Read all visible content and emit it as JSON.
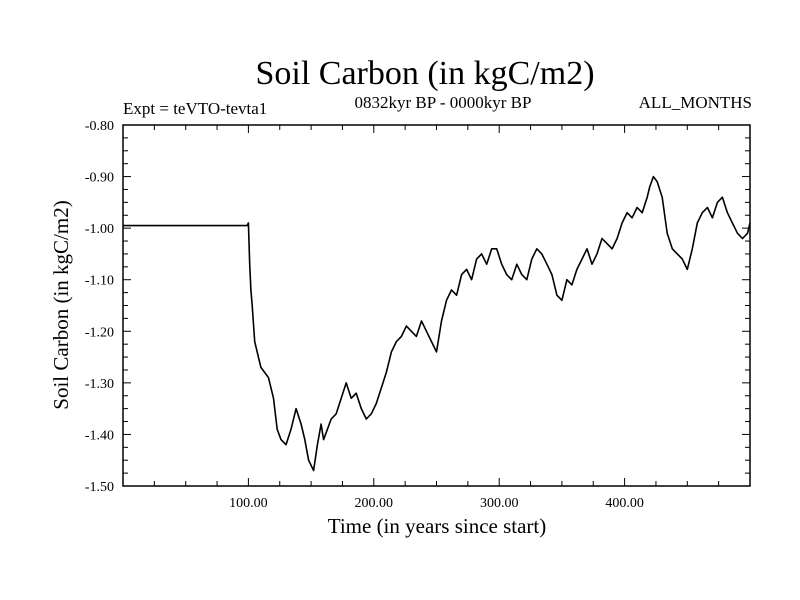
{
  "chart_data": {
    "type": "line",
    "title": "Soil Carbon (in kgC/m2)",
    "subtitle": "0832kyr BP - 0000kyr BP",
    "experiment": "Expt = teVTO-tevta1",
    "period": "ALL_MONTHS",
    "xlabel": "Time (in years since start)",
    "ylabel": "Soil Carbon (in kgC/m2)",
    "xlim": [
      0,
      500
    ],
    "ylim": [
      -1.5,
      -0.8
    ],
    "xticks": [
      100,
      200,
      300,
      400
    ],
    "xtick_labels": [
      "100.00",
      "200.00",
      "300.00",
      "400.00"
    ],
    "yticks": [
      -0.8,
      -0.9,
      -1.0,
      -1.1,
      -1.2,
      -1.3,
      -1.4,
      -1.5
    ],
    "ytick_labels": [
      "-0.80",
      "-0.90",
      "-1.00",
      "-1.10",
      "-1.20",
      "-1.30",
      "-1.40",
      "-1.50"
    ],
    "grid": false,
    "series": [
      {
        "name": "Soil Carbon",
        "color": "#000000",
        "x": [
          0,
          99,
          100,
          101,
          102,
          103,
          105,
          108,
          110,
          113,
          116,
          120,
          123,
          126,
          130,
          134,
          138,
          142,
          145,
          148,
          150,
          152,
          155,
          158,
          160,
          163,
          166,
          170,
          174,
          178,
          182,
          186,
          190,
          194,
          198,
          202,
          206,
          210,
          214,
          218,
          222,
          226,
          230,
          234,
          238,
          242,
          246,
          250,
          254,
          258,
          262,
          266,
          270,
          274,
          278,
          282,
          286,
          290,
          294,
          298,
          302,
          306,
          310,
          314,
          318,
          322,
          326,
          330,
          334,
          338,
          342,
          346,
          350,
          354,
          358,
          362,
          366,
          370,
          374,
          378,
          382,
          386,
          390,
          394,
          398,
          402,
          406,
          410,
          414,
          418,
          420,
          423,
          426,
          430,
          434,
          438,
          442,
          446,
          450,
          454,
          458,
          462,
          466,
          470,
          474,
          478,
          482,
          486,
          490,
          494,
          498,
          500
        ],
        "values": [
          -0.995,
          -0.995,
          -0.99,
          -1.07,
          -1.12,
          -1.15,
          -1.22,
          -1.25,
          -1.27,
          -1.28,
          -1.29,
          -1.33,
          -1.39,
          -1.41,
          -1.42,
          -1.39,
          -1.35,
          -1.38,
          -1.41,
          -1.45,
          -1.46,
          -1.47,
          -1.42,
          -1.38,
          -1.41,
          -1.39,
          -1.37,
          -1.36,
          -1.33,
          -1.3,
          -1.33,
          -1.32,
          -1.35,
          -1.37,
          -1.36,
          -1.34,
          -1.31,
          -1.28,
          -1.24,
          -1.22,
          -1.21,
          -1.19,
          -1.2,
          -1.21,
          -1.18,
          -1.2,
          -1.22,
          -1.24,
          -1.18,
          -1.14,
          -1.12,
          -1.13,
          -1.09,
          -1.08,
          -1.1,
          -1.06,
          -1.05,
          -1.07,
          -1.04,
          -1.04,
          -1.07,
          -1.09,
          -1.1,
          -1.07,
          -1.09,
          -1.1,
          -1.06,
          -1.04,
          -1.05,
          -1.07,
          -1.09,
          -1.13,
          -1.14,
          -1.1,
          -1.11,
          -1.08,
          -1.06,
          -1.04,
          -1.07,
          -1.05,
          -1.02,
          -1.03,
          -1.04,
          -1.02,
          -0.99,
          -0.97,
          -0.98,
          -0.96,
          -0.97,
          -0.94,
          -0.92,
          -0.9,
          -0.91,
          -0.94,
          -1.01,
          -1.04,
          -1.05,
          -1.06,
          -1.08,
          -1.04,
          -0.99,
          -0.97,
          -0.96,
          -0.98,
          -0.95,
          -0.94,
          -0.97,
          -0.99,
          -1.01,
          -1.02,
          -1.01,
          -0.99
        ]
      }
    ]
  }
}
